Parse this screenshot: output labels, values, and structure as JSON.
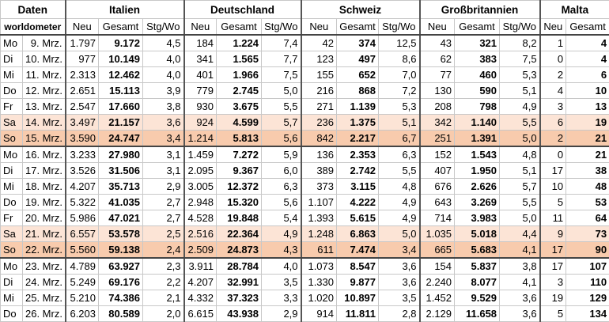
{
  "table": {
    "groups": [
      "Daten",
      "Italien",
      "Deutschland",
      "Schweiz",
      "Großbritannien",
      "Malta"
    ],
    "subheader": [
      "worldometer",
      "Neu",
      "Gesamt",
      "Stg/Wo",
      "Neu",
      "Gesamt",
      "Stg/Wo",
      "Neu",
      "Gesamt",
      "Stg/Wo",
      "Neu",
      "Gesamt",
      "Stg/Wo",
      "Neu",
      "Gesamt"
    ],
    "rows": [
      [
        "Mo",
        "9. Mrz.",
        "1.797",
        "9.172",
        "4,5",
        "184",
        "1.224",
        "7,4",
        "42",
        "374",
        "12,5",
        "43",
        "321",
        "8,2",
        "1",
        "4"
      ],
      [
        "Di",
        "10. Mrz.",
        "977",
        "10.149",
        "4,0",
        "341",
        "1.565",
        "7,7",
        "123",
        "497",
        "8,6",
        "62",
        "383",
        "7,5",
        "0",
        "4"
      ],
      [
        "Mi",
        "11. Mrz.",
        "2.313",
        "12.462",
        "4,0",
        "401",
        "1.966",
        "7,5",
        "155",
        "652",
        "7,0",
        "77",
        "460",
        "5,3",
        "2",
        "6"
      ],
      [
        "Do",
        "12. Mrz.",
        "2.651",
        "15.113",
        "3,9",
        "779",
        "2.745",
        "5,0",
        "216",
        "868",
        "7,2",
        "130",
        "590",
        "5,1",
        "4",
        "10"
      ],
      [
        "Fr",
        "13. Mrz.",
        "2.547",
        "17.660",
        "3,8",
        "930",
        "3.675",
        "5,5",
        "271",
        "1.139",
        "5,3",
        "208",
        "798",
        "4,9",
        "3",
        "13"
      ],
      [
        "Sa",
        "14. Mrz.",
        "3.497",
        "21.157",
        "3,6",
        "924",
        "4.599",
        "5,7",
        "236",
        "1.375",
        "5,1",
        "342",
        "1.140",
        "5,5",
        "6",
        "19"
      ],
      [
        "So",
        "15. Mrz.",
        "3.590",
        "24.747",
        "3,4",
        "1.214",
        "5.813",
        "5,6",
        "842",
        "2.217",
        "6,7",
        "251",
        "1.391",
        "5,0",
        "2",
        "21"
      ],
      [
        "Mo",
        "16. Mrz.",
        "3.233",
        "27.980",
        "3,1",
        "1.459",
        "7.272",
        "5,9",
        "136",
        "2.353",
        "6,3",
        "152",
        "1.543",
        "4,8",
        "0",
        "21"
      ],
      [
        "Di",
        "17. Mrz.",
        "3.526",
        "31.506",
        "3,1",
        "2.095",
        "9.367",
        "6,0",
        "389",
        "2.742",
        "5,5",
        "407",
        "1.950",
        "5,1",
        "17",
        "38"
      ],
      [
        "Mi",
        "18. Mrz.",
        "4.207",
        "35.713",
        "2,9",
        "3.005",
        "12.372",
        "6,3",
        "373",
        "3.115",
        "4,8",
        "676",
        "2.626",
        "5,7",
        "10",
        "48"
      ],
      [
        "Do",
        "19. Mrz.",
        "5.322",
        "41.035",
        "2,7",
        "2.948",
        "15.320",
        "5,6",
        "1.107",
        "4.222",
        "4,9",
        "643",
        "3.269",
        "5,5",
        "5",
        "53"
      ],
      [
        "Fr",
        "20. Mrz.",
        "5.986",
        "47.021",
        "2,7",
        "4.528",
        "19.848",
        "5,4",
        "1.393",
        "5.615",
        "4,9",
        "714",
        "3.983",
        "5,0",
        "11",
        "64"
      ],
      [
        "Sa",
        "21. Mrz.",
        "6.557",
        "53.578",
        "2,5",
        "2.516",
        "22.364",
        "4,9",
        "1.248",
        "6.863",
        "5,0",
        "1.035",
        "5.018",
        "4,4",
        "9",
        "73"
      ],
      [
        "So",
        "22. Mrz.",
        "5.560",
        "59.138",
        "2,4",
        "2.509",
        "24.873",
        "4,3",
        "611",
        "7.474",
        "3,4",
        "665",
        "5.683",
        "4,1",
        "17",
        "90"
      ],
      [
        "Mo",
        "23. Mrz.",
        "4.789",
        "63.927",
        "2,3",
        "3.911",
        "28.784",
        "4,0",
        "1.073",
        "8.547",
        "3,6",
        "154",
        "5.837",
        "3,8",
        "17",
        "107"
      ],
      [
        "Di",
        "24. Mrz.",
        "5.249",
        "69.176",
        "2,2",
        "4.207",
        "32.991",
        "3,5",
        "1.330",
        "9.877",
        "3,6",
        "2.240",
        "8.077",
        "4,1",
        "3",
        "110"
      ],
      [
        "Mi",
        "25. Mrz.",
        "5.210",
        "74.386",
        "2,1",
        "4.332",
        "37.323",
        "3,3",
        "1.020",
        "10.897",
        "3,5",
        "1.452",
        "9.529",
        "3,6",
        "19",
        "129"
      ],
      [
        "Do",
        "26. Mrz.",
        "6.203",
        "80.589",
        "2,0",
        "6.615",
        "43.938",
        "2,9",
        "914",
        "11.811",
        "2,8",
        "2.129",
        "11.658",
        "3,6",
        "5",
        "134"
      ]
    ]
  }
}
